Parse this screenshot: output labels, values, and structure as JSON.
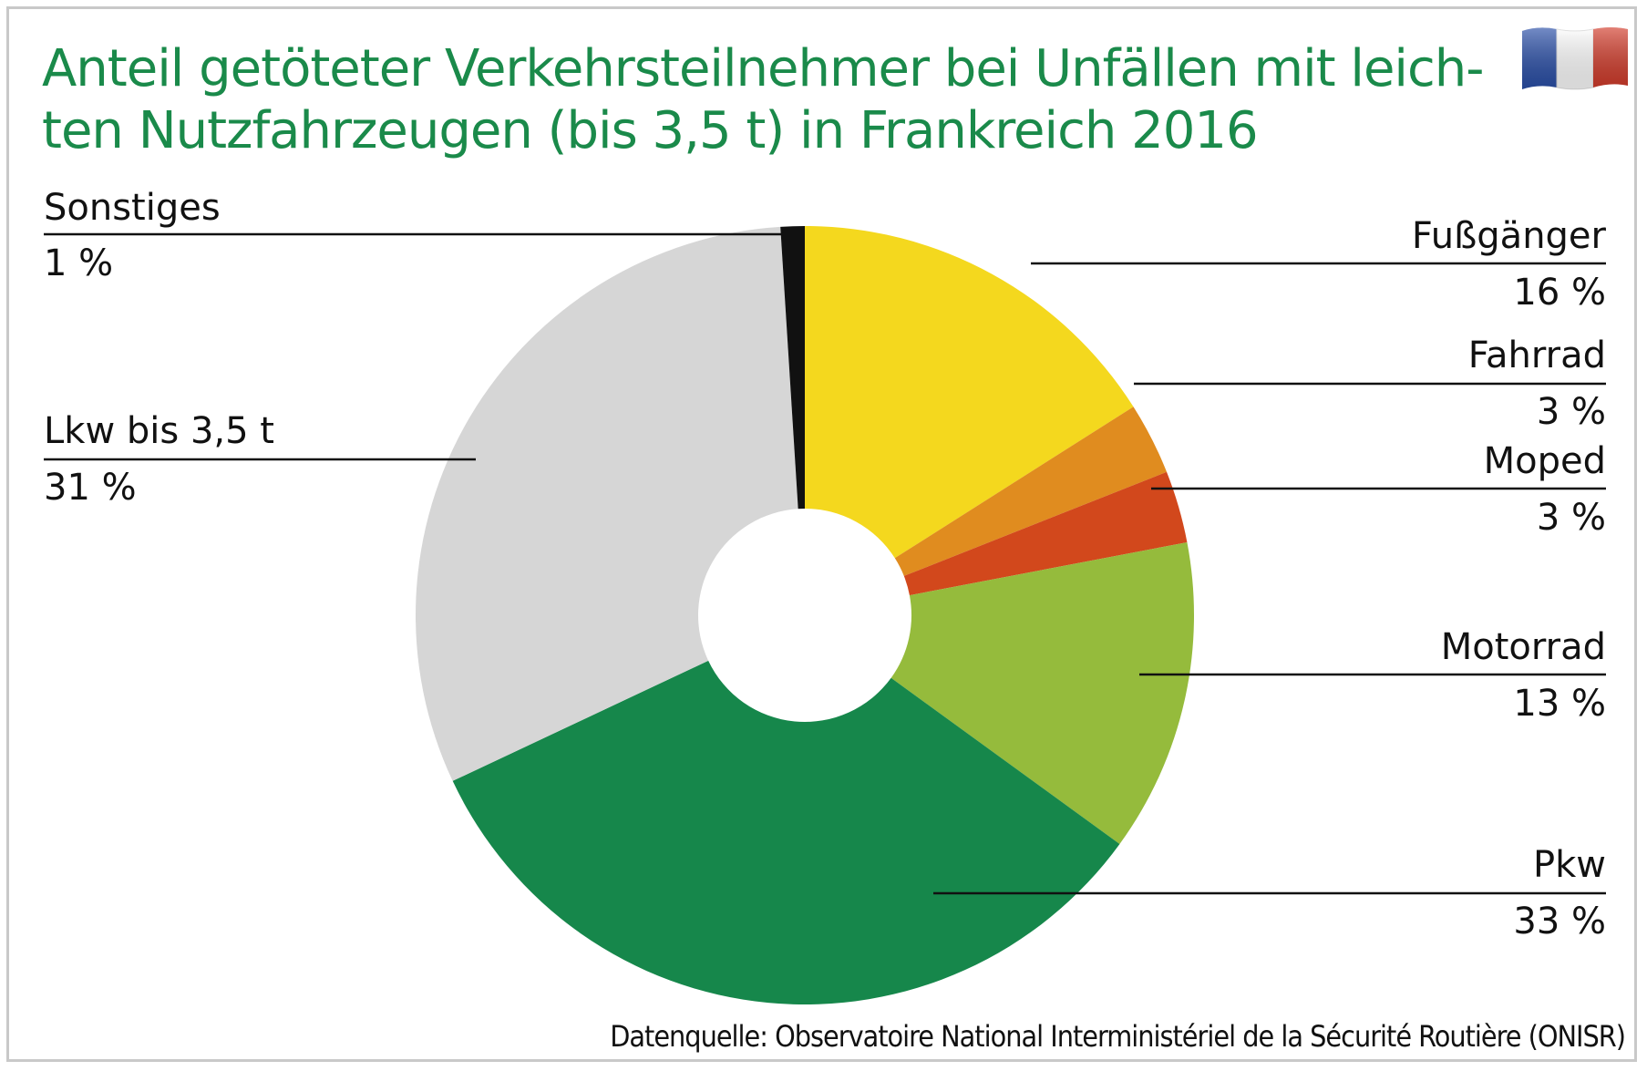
{
  "title_lines": [
    "Anteil getöteter Verkehrsteilnehmer bei Unfällen mit leich-",
    "ten Nutzfahrzeugen (bis 3,5 t) in Frankreich 2016"
  ],
  "source": "Datenquelle: Observatoire National Interministériel de la Sécurité Routière (ONISR)",
  "flag_icon": "france-flag-icon",
  "colors": {
    "title": "#1a8a4a",
    "flag_blue": "#2a4fa8",
    "flag_white": "#ffffff",
    "flag_red": "#d23b2a"
  },
  "chart_data": {
    "type": "pie",
    "donut": true,
    "start_angle_deg": 0,
    "direction": "clockwise",
    "slices": [
      {
        "label": "Fußgänger",
        "value": 16,
        "value_label": "16 %",
        "color": "#f4d81e"
      },
      {
        "label": "Fahrrad",
        "value": 3,
        "value_label": "3 %",
        "color": "#e08c1f"
      },
      {
        "label": "Moped",
        "value": 3,
        "value_label": "3 %",
        "color": "#d2481c"
      },
      {
        "label": "Motorrad",
        "value": 13,
        "value_label": "13 %",
        "color": "#95bb3c"
      },
      {
        "label": "Pkw",
        "value": 33,
        "value_label": "33 %",
        "color": "#16874b"
      },
      {
        "label": "Lkw bis 3,5 t",
        "value": 31,
        "value_label": "31 %",
        "color": "#d6d6d6"
      },
      {
        "label": "Sonstiges",
        "value": 1,
        "value_label": "1 %",
        "color": "#111111"
      }
    ]
  }
}
